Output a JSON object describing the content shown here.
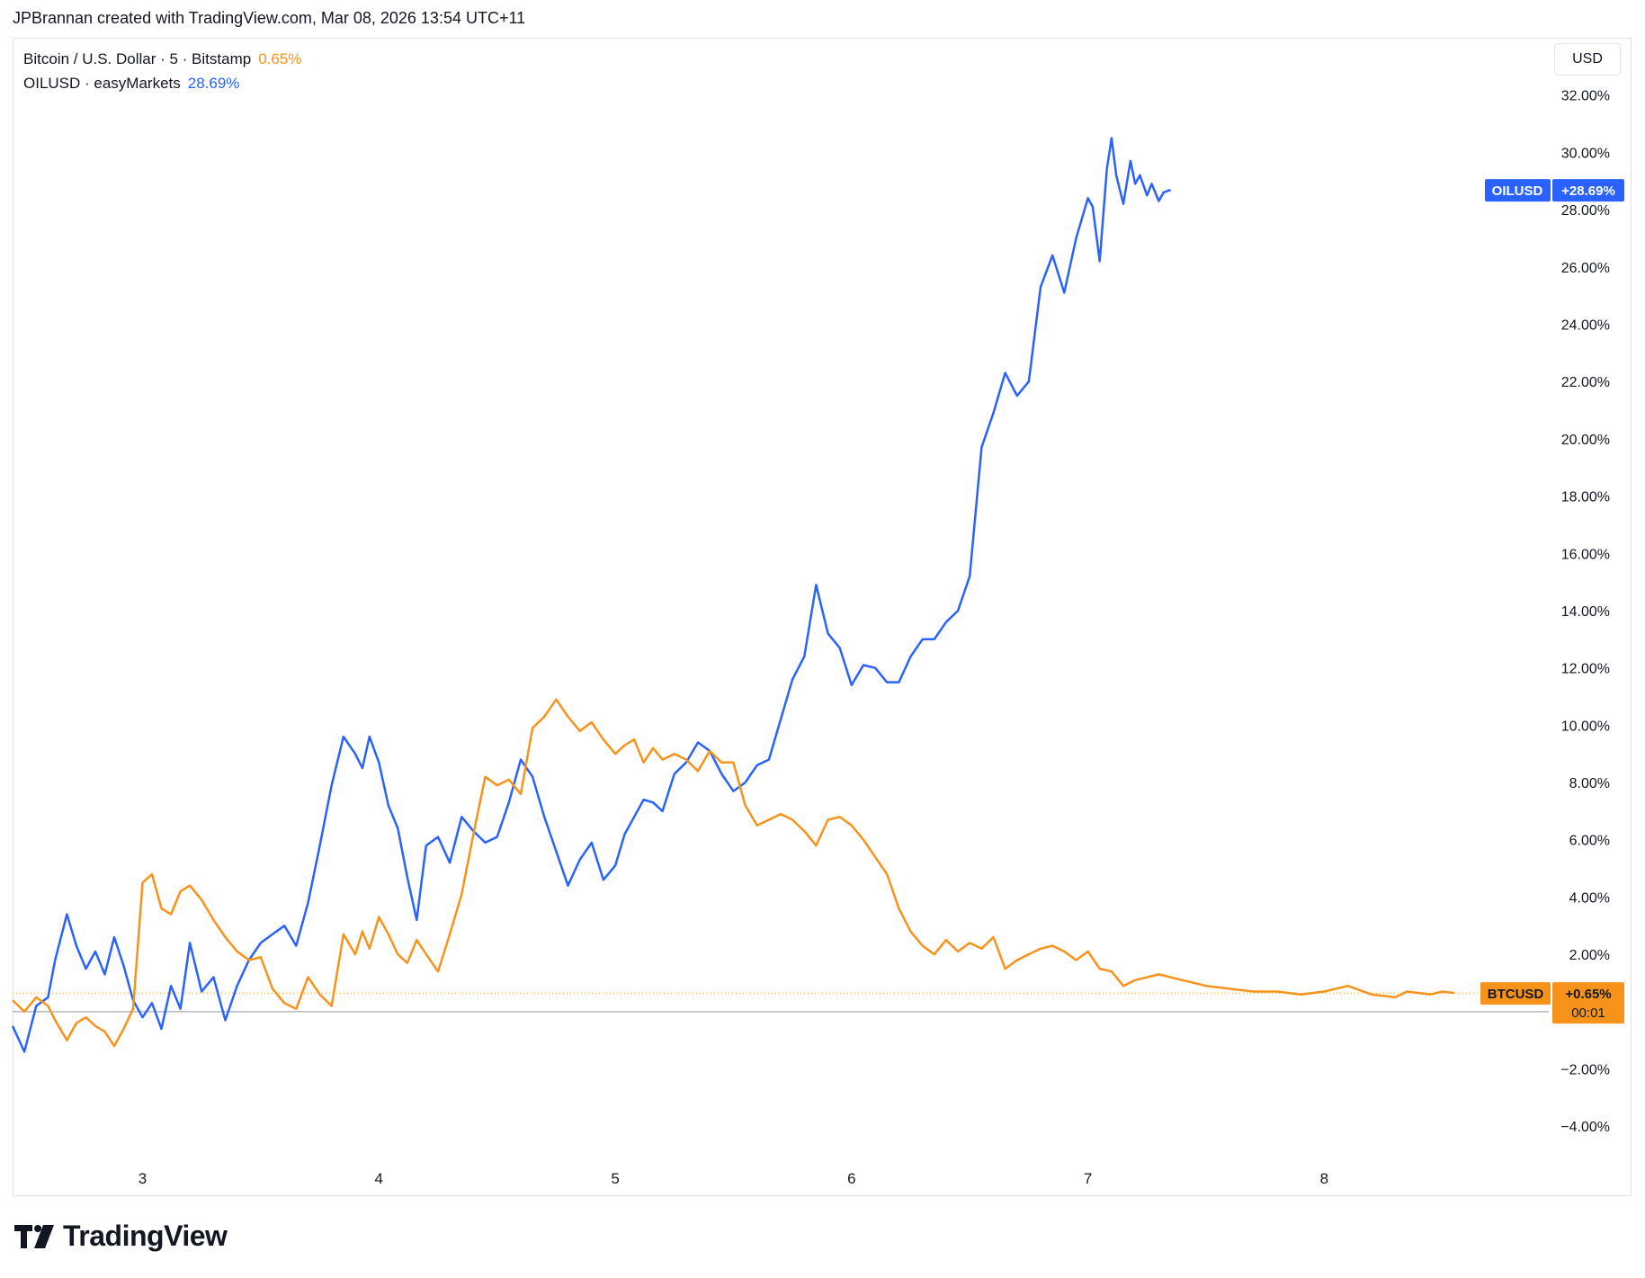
{
  "header": {
    "attribution": "JPBrannan created with TradingView.com, Mar 08, 2026 13:54 UTC+11"
  },
  "legend": {
    "btc_name": "Bitcoin / U.S. Dollar · 5 · Bitstamp",
    "btc_value": "0.65%",
    "oil_name": "OILUSD · easyMarkets",
    "oil_value": "28.69%"
  },
  "currency_button": "USD",
  "footer": {
    "logo_text": "TradingView"
  },
  "colors": {
    "btc": "#f7931a",
    "oil": "#2962ff",
    "grid": "#e0e3eb",
    "zero": "#9598a1"
  },
  "chart_data": {
    "type": "line",
    "y_unit": "%",
    "ylim": [
      -5.5,
      34
    ],
    "xlim": [
      2.45,
      8.95
    ],
    "grid": false,
    "y_ticks": [
      {
        "value": 32,
        "label": "32.00%"
      },
      {
        "value": 30,
        "label": "30.00%"
      },
      {
        "value": 28,
        "label": "28.00%"
      },
      {
        "value": 26,
        "label": "26.00%"
      },
      {
        "value": 24,
        "label": "24.00%"
      },
      {
        "value": 22,
        "label": "22.00%"
      },
      {
        "value": 20,
        "label": "20.00%"
      },
      {
        "value": 18,
        "label": "18.00%"
      },
      {
        "value": 16,
        "label": "16.00%"
      },
      {
        "value": 14,
        "label": "14.00%"
      },
      {
        "value": 12,
        "label": "12.00%"
      },
      {
        "value": 10,
        "label": "10.00%"
      },
      {
        "value": 8,
        "label": "8.00%"
      },
      {
        "value": 6,
        "label": "6.00%"
      },
      {
        "value": 4,
        "label": "4.00%"
      },
      {
        "value": 2,
        "label": "2.00%"
      },
      {
        "value": -2,
        "label": "−2.00%"
      },
      {
        "value": -4,
        "label": "−4.00%"
      }
    ],
    "x_ticks": [
      {
        "value": 3,
        "label": "3"
      },
      {
        "value": 4,
        "label": "4"
      },
      {
        "value": 5,
        "label": "5"
      },
      {
        "value": 6,
        "label": "6"
      },
      {
        "value": 7,
        "label": "7"
      },
      {
        "value": 8,
        "label": "8"
      }
    ],
    "series": [
      {
        "name": "OILUSD",
        "label": "OILUSD",
        "last_label": "+28.69%",
        "last_value": 28.69,
        "color": "#2962ff",
        "x": [
          2.45,
          2.5,
          2.55,
          2.6,
          2.63,
          2.68,
          2.72,
          2.76,
          2.8,
          2.84,
          2.88,
          2.92,
          2.96,
          3.0,
          3.04,
          3.08,
          3.12,
          3.16,
          3.2,
          3.25,
          3.3,
          3.35,
          3.4,
          3.45,
          3.5,
          3.55,
          3.6,
          3.65,
          3.7,
          3.75,
          3.8,
          3.85,
          3.9,
          3.93,
          3.96,
          4.0,
          4.04,
          4.08,
          4.12,
          4.16,
          4.2,
          4.25,
          4.3,
          4.35,
          4.4,
          4.45,
          4.5,
          4.55,
          4.6,
          4.65,
          4.7,
          4.75,
          4.8,
          4.85,
          4.9,
          4.95,
          5.0,
          5.04,
          5.08,
          5.12,
          5.16,
          5.2,
          5.25,
          5.3,
          5.35,
          5.4,
          5.45,
          5.5,
          5.55,
          5.6,
          5.65,
          5.7,
          5.75,
          5.8,
          5.85,
          5.9,
          5.95,
          6.0,
          6.05,
          6.1,
          6.15,
          6.2,
          6.25,
          6.3,
          6.35,
          6.4,
          6.45,
          6.5,
          6.55,
          6.6,
          6.65,
          6.7,
          6.75,
          6.8,
          6.85,
          6.9,
          6.95,
          7.0,
          7.02,
          7.05,
          7.08,
          7.1,
          7.12,
          7.15,
          7.18,
          7.2,
          7.22,
          7.25,
          7.27,
          7.3,
          7.32,
          7.35
        ],
        "y": [
          -0.5,
          -1.4,
          0.2,
          0.5,
          1.8,
          3.4,
          2.3,
          1.5,
          2.1,
          1.3,
          2.6,
          1.6,
          0.4,
          -0.2,
          0.3,
          -0.6,
          0.9,
          0.1,
          2.4,
          0.7,
          1.2,
          -0.3,
          0.9,
          1.8,
          2.4,
          2.7,
          3.0,
          2.3,
          3.8,
          5.8,
          7.9,
          9.6,
          9.0,
          8.5,
          9.6,
          8.7,
          7.2,
          6.4,
          4.7,
          3.2,
          5.8,
          6.1,
          5.2,
          6.8,
          6.3,
          5.9,
          6.1,
          7.3,
          8.8,
          8.2,
          6.8,
          5.6,
          4.4,
          5.3,
          5.9,
          4.6,
          5.1,
          6.2,
          6.8,
          7.4,
          7.3,
          7.0,
          8.3,
          8.7,
          9.4,
          9.1,
          8.3,
          7.7,
          8.0,
          8.6,
          8.8,
          10.2,
          11.6,
          12.4,
          14.9,
          13.2,
          12.7,
          11.4,
          12.1,
          12.0,
          11.5,
          11.5,
          12.4,
          13.0,
          13.0,
          13.6,
          14.0,
          15.2,
          19.7,
          20.9,
          22.3,
          21.5,
          22.0,
          25.3,
          26.4,
          25.1,
          27.0,
          28.4,
          28.1,
          26.2,
          29.4,
          30.5,
          29.2,
          28.2,
          29.7,
          28.9,
          29.2,
          28.5,
          28.9,
          28.3,
          28.6,
          28.69
        ]
      },
      {
        "name": "BTCUSD",
        "label": "BTCUSD",
        "last_label": "+0.65%",
        "countdown": "00:01",
        "last_value": 0.65,
        "color": "#f7931a",
        "x": [
          2.45,
          2.5,
          2.55,
          2.6,
          2.63,
          2.68,
          2.72,
          2.76,
          2.8,
          2.84,
          2.88,
          2.92,
          2.96,
          3.0,
          3.04,
          3.08,
          3.12,
          3.16,
          3.2,
          3.25,
          3.3,
          3.35,
          3.4,
          3.45,
          3.5,
          3.55,
          3.6,
          3.65,
          3.7,
          3.75,
          3.8,
          3.85,
          3.9,
          3.93,
          3.96,
          4.0,
          4.04,
          4.08,
          4.12,
          4.16,
          4.2,
          4.25,
          4.3,
          4.35,
          4.4,
          4.45,
          4.5,
          4.55,
          4.6,
          4.65,
          4.7,
          4.75,
          4.8,
          4.85,
          4.9,
          4.95,
          5.0,
          5.04,
          5.08,
          5.12,
          5.16,
          5.2,
          5.25,
          5.3,
          5.35,
          5.4,
          5.45,
          5.5,
          5.55,
          5.6,
          5.65,
          5.7,
          5.75,
          5.8,
          5.85,
          5.9,
          5.95,
          6.0,
          6.05,
          6.1,
          6.15,
          6.2,
          6.25,
          6.3,
          6.35,
          6.4,
          6.45,
          6.5,
          6.55,
          6.6,
          6.65,
          6.7,
          6.75,
          6.8,
          6.85,
          6.9,
          6.95,
          7.0,
          7.05,
          7.1,
          7.15,
          7.2,
          7.3,
          7.4,
          7.5,
          7.6,
          7.7,
          7.8,
          7.9,
          8.0,
          8.1,
          8.2,
          8.3,
          8.35,
          8.4,
          8.45,
          8.5,
          8.55
        ],
        "y": [
          0.4,
          0.0,
          0.5,
          0.2,
          -0.3,
          -1.0,
          -0.4,
          -0.2,
          -0.5,
          -0.7,
          -1.2,
          -0.6,
          0.1,
          4.5,
          4.8,
          3.6,
          3.4,
          4.2,
          4.4,
          3.9,
          3.2,
          2.6,
          2.1,
          1.8,
          1.9,
          0.8,
          0.3,
          0.1,
          1.2,
          0.6,
          0.2,
          2.7,
          2.0,
          2.8,
          2.2,
          3.3,
          2.7,
          2.0,
          1.7,
          2.5,
          2.0,
          1.4,
          2.7,
          4.1,
          6.2,
          8.2,
          7.9,
          8.1,
          7.6,
          9.9,
          10.3,
          10.9,
          10.3,
          9.8,
          10.1,
          9.5,
          9.0,
          9.3,
          9.5,
          8.7,
          9.2,
          8.8,
          9.0,
          8.8,
          8.4,
          9.1,
          8.7,
          8.7,
          7.2,
          6.5,
          6.7,
          6.9,
          6.7,
          6.3,
          5.8,
          6.7,
          6.8,
          6.5,
          6.0,
          5.4,
          4.8,
          3.6,
          2.8,
          2.3,
          2.0,
          2.5,
          2.1,
          2.4,
          2.2,
          2.6,
          1.5,
          1.8,
          2.0,
          2.2,
          2.3,
          2.1,
          1.8,
          2.1,
          1.5,
          1.4,
          0.9,
          1.1,
          1.3,
          1.1,
          0.9,
          0.8,
          0.7,
          0.7,
          0.6,
          0.7,
          0.9,
          0.6,
          0.5,
          0.7,
          0.65,
          0.6,
          0.7,
          0.65
        ]
      }
    ]
  }
}
